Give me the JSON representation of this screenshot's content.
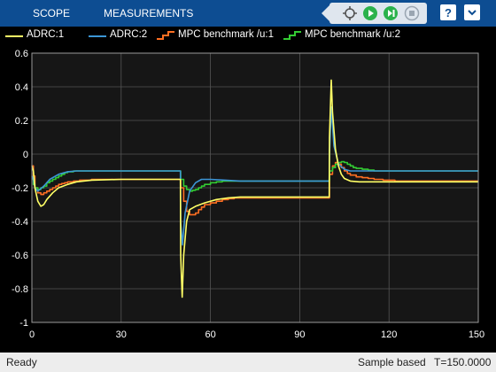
{
  "toolstrip": {
    "tabs": [
      {
        "label": "SCOPE"
      },
      {
        "label": "MEASUREMENTS"
      }
    ],
    "buttons": [
      "highlight-simulink-block",
      "run",
      "step-forward",
      "stop"
    ],
    "help_button": "help",
    "menu_button": "toolstrip-menu"
  },
  "colors": {
    "toolstrip": "#0d4d92",
    "plot_background": "#000000",
    "axes_background": "#161616",
    "grid": "#555555",
    "statusbar": "#ededed",
    "run": "#2bb24c"
  },
  "legend": [
    {
      "label": "ADRC:1",
      "color": "#ffff66",
      "style": "line"
    },
    {
      "label": "ADRC:2",
      "color": "#3c96d6",
      "style": "line"
    },
    {
      "label": "MPC benchmark /u:1",
      "color": "#ff6f22",
      "style": "stairs"
    },
    {
      "label": "MPC benchmark /u:2",
      "color": "#33cc33",
      "style": "stairs"
    }
  ],
  "chart_data": {
    "type": "line",
    "xlim": [
      0,
      150
    ],
    "ylim": [
      -1,
      0.6
    ],
    "xticks": [
      0,
      30,
      60,
      90,
      120,
      150
    ],
    "yticks": [
      0.6,
      0.4,
      0.2,
      0,
      -0.2,
      -0.4,
      -0.6,
      -0.8,
      -1
    ],
    "grid": true,
    "legend_position": "top",
    "series": [
      {
        "name": "ADRC:1",
        "color": "#ffff66",
        "step": false,
        "x": [
          0,
          0.5,
          1,
          2,
          3,
          4,
          5,
          7,
          9,
          12,
          15,
          20,
          30,
          40,
          49.9,
          50,
          50.5,
          51,
          52,
          53,
          55,
          58,
          62,
          66,
          70,
          75,
          80,
          90,
          99.9,
          100,
          100.6,
          101,
          102,
          103,
          104,
          105,
          107,
          110,
          115,
          120,
          130,
          140,
          150
        ],
        "y": [
          -0.07,
          -0.1,
          -0.2,
          -0.28,
          -0.31,
          -0.3,
          -0.27,
          -0.23,
          -0.2,
          -0.18,
          -0.165,
          -0.155,
          -0.15,
          -0.15,
          -0.15,
          -0.6,
          -0.85,
          -0.6,
          -0.4,
          -0.33,
          -0.31,
          -0.29,
          -0.27,
          -0.26,
          -0.255,
          -0.255,
          -0.255,
          -0.255,
          -0.255,
          0.1,
          0.44,
          0.25,
          0.03,
          -0.07,
          -0.12,
          -0.145,
          -0.16,
          -0.165,
          -0.165,
          -0.165,
          -0.165,
          -0.165,
          -0.165
        ]
      },
      {
        "name": "ADRC:2",
        "color": "#3c96d6",
        "step": false,
        "x": [
          0,
          0.5,
          1,
          2,
          4,
          6,
          9,
          12,
          15,
          20,
          30,
          40,
          49.9,
          50,
          50.6,
          51.5,
          53,
          55,
          57,
          60,
          65,
          70,
          80,
          90,
          99.9,
          100,
          100.6,
          101.5,
          103,
          105,
          107,
          110,
          115,
          120,
          130,
          140,
          150
        ],
        "y": [
          -0.13,
          -0.15,
          -0.2,
          -0.22,
          -0.19,
          -0.15,
          -0.12,
          -0.105,
          -0.1,
          -0.1,
          -0.1,
          -0.1,
          -0.1,
          -0.4,
          -0.54,
          -0.35,
          -0.22,
          -0.17,
          -0.15,
          -0.15,
          -0.155,
          -0.16,
          -0.16,
          -0.16,
          -0.16,
          0.0,
          0.28,
          0.05,
          -0.06,
          -0.09,
          -0.1,
          -0.1,
          -0.1,
          -0.1,
          -0.1,
          -0.1,
          -0.1
        ]
      },
      {
        "name": "MPC benchmark /u:1",
        "color": "#ff6f22",
        "step": true,
        "x": [
          0,
          0.5,
          1,
          2,
          3,
          4,
          5,
          6,
          7,
          8,
          9,
          10,
          11,
          12,
          14,
          16,
          20,
          30,
          40,
          50,
          51,
          52,
          53,
          54,
          55,
          56,
          57,
          58,
          60,
          62,
          64,
          66,
          68,
          70,
          75,
          80,
          90,
          100,
          101,
          102,
          103,
          104,
          105,
          106,
          107,
          109,
          111,
          113,
          115,
          118,
          122,
          130,
          140,
          150
        ],
        "y": [
          -0.07,
          -0.13,
          -0.2,
          -0.23,
          -0.24,
          -0.23,
          -0.22,
          -0.21,
          -0.2,
          -0.19,
          -0.18,
          -0.175,
          -0.17,
          -0.165,
          -0.16,
          -0.155,
          -0.15,
          -0.15,
          -0.15,
          -0.2,
          -0.28,
          -0.34,
          -0.36,
          -0.36,
          -0.35,
          -0.33,
          -0.315,
          -0.3,
          -0.29,
          -0.28,
          -0.27,
          -0.265,
          -0.26,
          -0.26,
          -0.26,
          -0.26,
          -0.26,
          -0.12,
          -0.07,
          -0.05,
          -0.06,
          -0.08,
          -0.1,
          -0.115,
          -0.125,
          -0.135,
          -0.14,
          -0.145,
          -0.15,
          -0.155,
          -0.16,
          -0.16,
          -0.16,
          -0.16
        ]
      },
      {
        "name": "MPC benchmark /u:2",
        "color": "#33cc33",
        "step": true,
        "x": [
          0,
          0.5,
          1,
          2,
          3,
          4,
          5,
          6,
          7,
          8,
          9,
          10,
          11,
          12,
          14,
          16,
          20,
          30,
          40,
          50,
          51,
          52,
          53,
          54,
          55,
          56,
          57,
          58,
          60,
          62,
          64,
          66,
          68,
          70,
          80,
          90,
          100,
          101,
          102,
          103,
          104,
          105,
          106,
          107,
          108,
          109,
          111,
          113,
          115,
          120,
          130,
          140,
          150
        ],
        "y": [
          -0.15,
          -0.18,
          -0.2,
          -0.21,
          -0.2,
          -0.19,
          -0.17,
          -0.16,
          -0.15,
          -0.14,
          -0.13,
          -0.12,
          -0.11,
          -0.105,
          -0.1,
          -0.1,
          -0.1,
          -0.1,
          -0.1,
          -0.15,
          -0.19,
          -0.21,
          -0.22,
          -0.215,
          -0.21,
          -0.2,
          -0.19,
          -0.18,
          -0.17,
          -0.165,
          -0.16,
          -0.16,
          -0.16,
          -0.16,
          -0.16,
          -0.16,
          -0.1,
          -0.08,
          -0.06,
          -0.05,
          -0.045,
          -0.05,
          -0.06,
          -0.07,
          -0.08,
          -0.085,
          -0.09,
          -0.095,
          -0.1,
          -0.1,
          -0.1,
          -0.1,
          -0.1
        ]
      }
    ]
  },
  "status": {
    "ready": "Ready",
    "sample": "Sample based",
    "time": "T=150.0000"
  }
}
